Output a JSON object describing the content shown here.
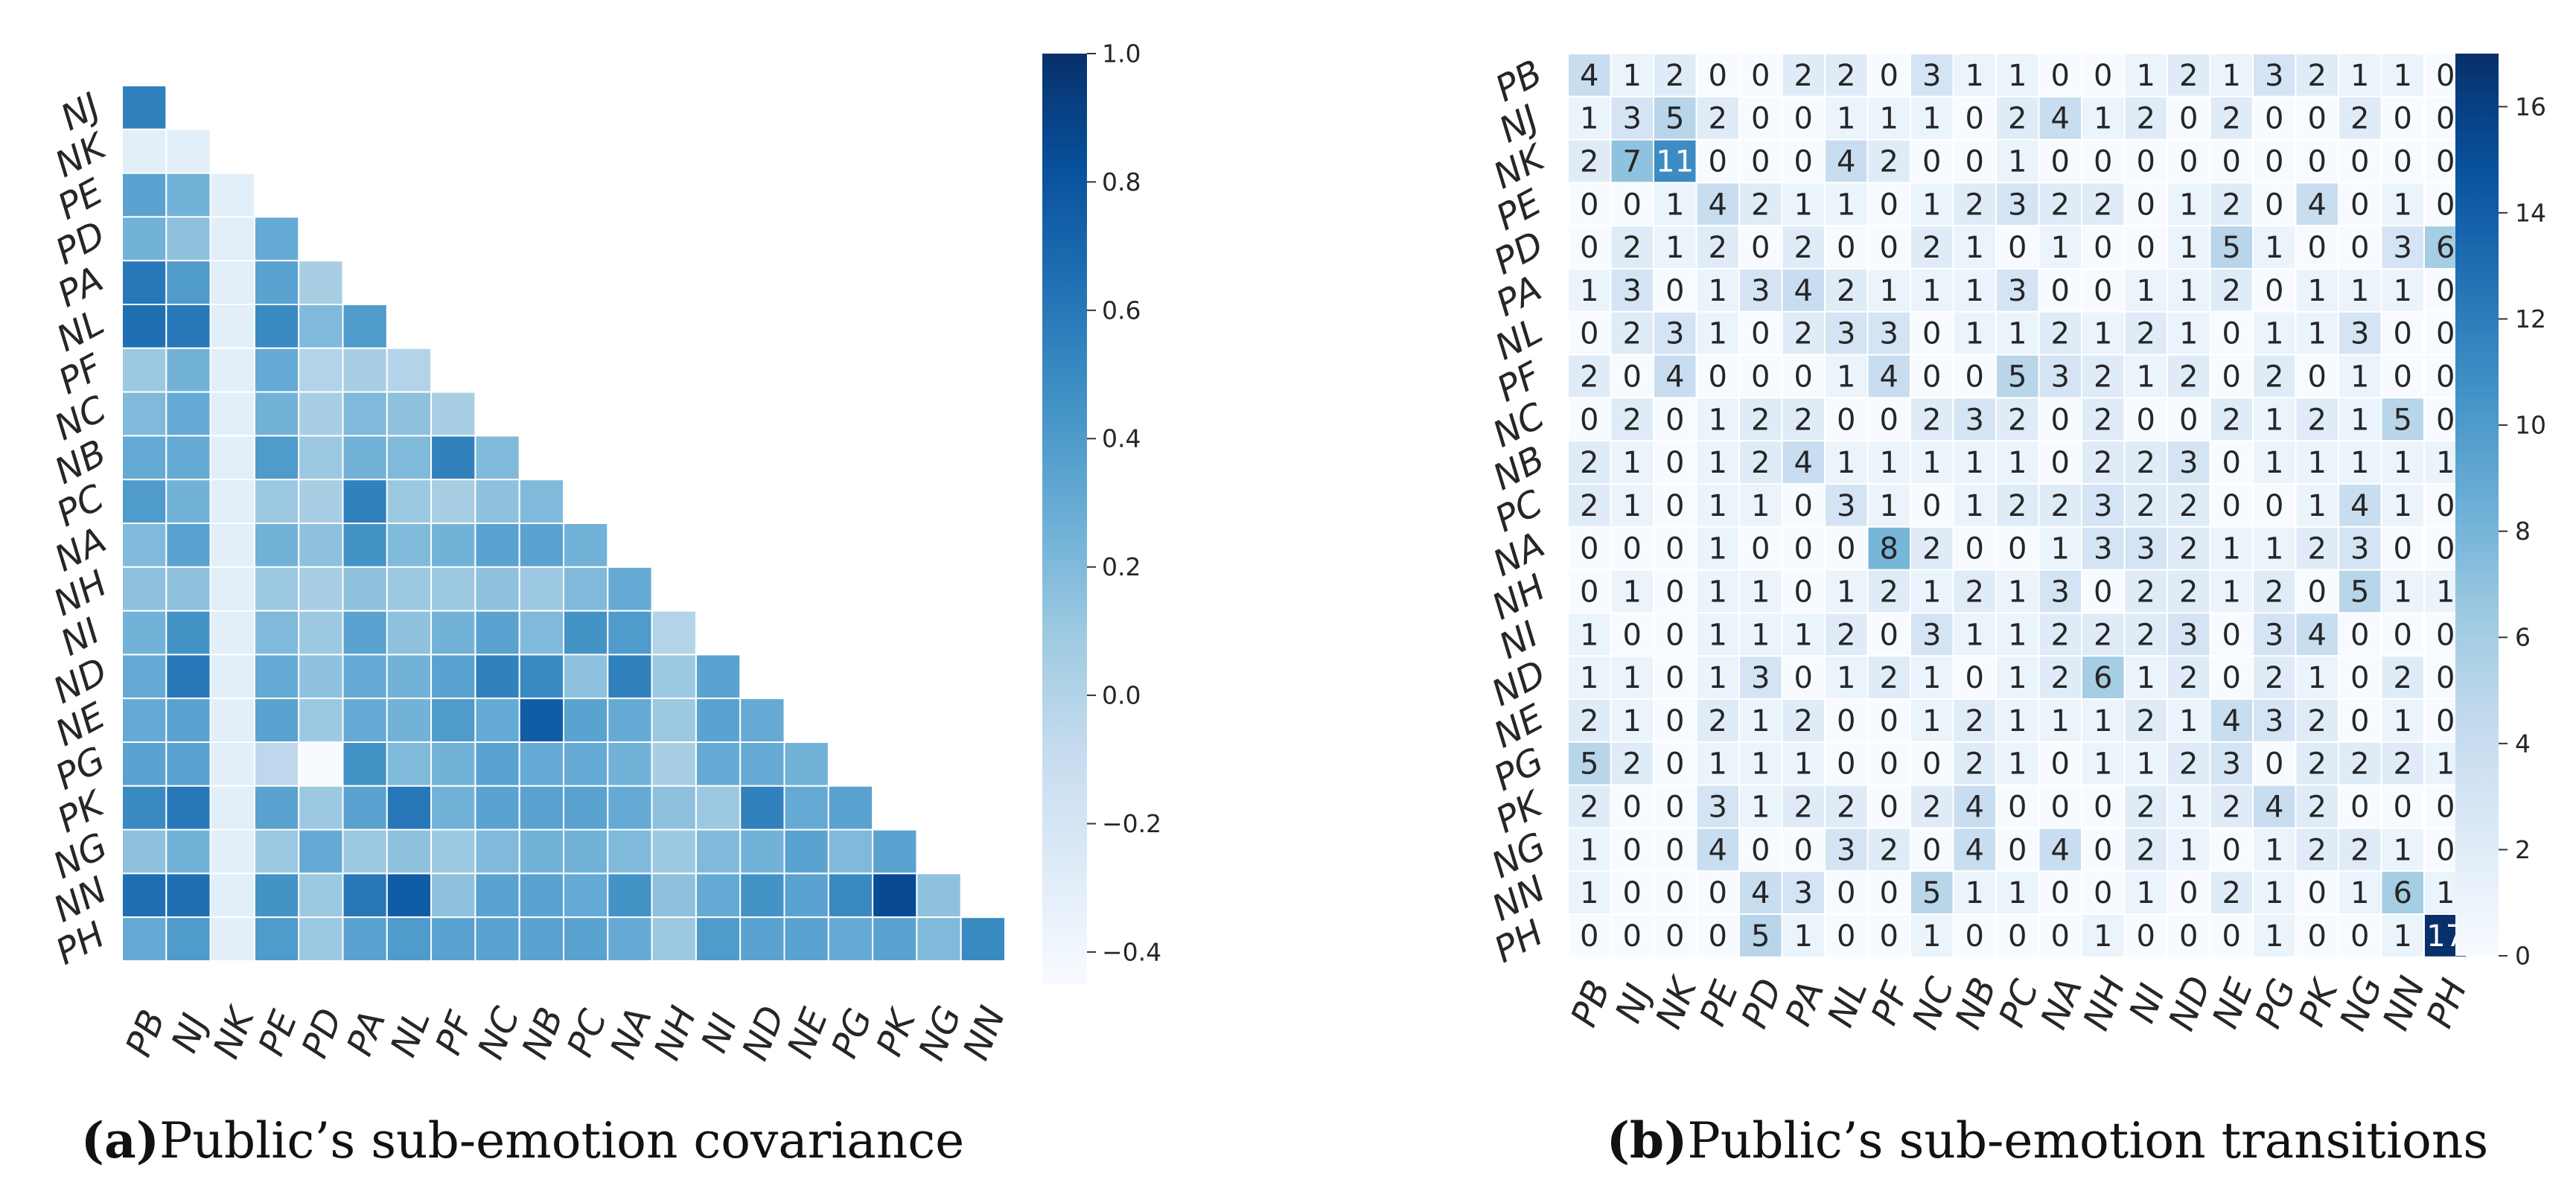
{
  "chart_data": [
    {
      "type": "heatmap",
      "subtype": "lower-triangle",
      "panel": "a",
      "caption_letter": "(a)",
      "caption_text": "Public’s sub-emotion covariance",
      "row_labels": [
        "NJ",
        "NK",
        "PE",
        "PD",
        "PA",
        "NL",
        "PF",
        "NC",
        "NB",
        "PC",
        "NA",
        "NH",
        "NI",
        "ND",
        "NE",
        "PG",
        "PK",
        "NG",
        "NN",
        "PH"
      ],
      "col_labels": [
        "PB",
        "NJ",
        "NK",
        "PE",
        "PD",
        "PA",
        "NL",
        "PF",
        "NC",
        "NB",
        "PC",
        "NA",
        "NH",
        "NI",
        "ND",
        "NE",
        "PG",
        "PK",
        "NG",
        "NN"
      ],
      "values": [
        [
          0.55
        ],
        [
          -0.3,
          -0.3
        ],
        [
          0.35,
          0.25,
          -0.3
        ],
        [
          0.25,
          0.15,
          -0.3,
          0.3
        ],
        [
          0.6,
          0.4,
          -0.3,
          0.35,
          0.05
        ],
        [
          0.65,
          0.6,
          -0.3,
          0.5,
          0.2,
          0.4
        ],
        [
          0.1,
          0.25,
          -0.3,
          0.3,
          0.0,
          0.05,
          0.0
        ],
        [
          0.2,
          0.3,
          -0.3,
          0.25,
          0.05,
          0.2,
          0.15,
          0.05
        ],
        [
          0.3,
          0.3,
          -0.3,
          0.4,
          0.1,
          0.25,
          0.2,
          0.55,
          0.2
        ],
        [
          0.4,
          0.25,
          -0.3,
          0.1,
          0.05,
          0.55,
          0.1,
          0.05,
          0.15,
          0.2
        ],
        [
          0.2,
          0.35,
          -0.3,
          0.25,
          0.15,
          0.45,
          0.2,
          0.25,
          0.35,
          0.35,
          0.25
        ],
        [
          0.15,
          0.15,
          -0.3,
          0.1,
          0.05,
          0.15,
          0.1,
          0.1,
          0.15,
          0.1,
          0.2,
          0.3
        ],
        [
          0.25,
          0.45,
          -0.3,
          0.2,
          0.1,
          0.35,
          0.15,
          0.25,
          0.35,
          0.2,
          0.45,
          0.4,
          0.0
        ],
        [
          0.3,
          0.6,
          -0.3,
          0.3,
          0.15,
          0.3,
          0.25,
          0.35,
          0.55,
          0.5,
          0.15,
          0.55,
          0.1,
          0.35
        ],
        [
          0.3,
          0.35,
          -0.3,
          0.35,
          0.1,
          0.3,
          0.25,
          0.4,
          0.3,
          0.75,
          0.35,
          0.3,
          0.1,
          0.35,
          0.3
        ],
        [
          0.35,
          0.35,
          -0.3,
          -0.05,
          -0.45,
          0.45,
          0.2,
          0.25,
          0.35,
          0.3,
          0.3,
          0.25,
          0.05,
          0.3,
          0.3,
          0.25
        ],
        [
          0.5,
          0.6,
          -0.3,
          0.35,
          0.1,
          0.35,
          0.6,
          0.25,
          0.35,
          0.35,
          0.35,
          0.3,
          0.15,
          0.1,
          0.55,
          0.3,
          0.35
        ],
        [
          0.15,
          0.25,
          -0.3,
          0.1,
          0.3,
          0.1,
          0.15,
          0.1,
          0.2,
          0.25,
          0.25,
          0.2,
          0.1,
          0.2,
          0.25,
          0.35,
          0.2,
          0.35
        ],
        [
          0.65,
          0.65,
          -0.3,
          0.45,
          0.1,
          0.6,
          0.75,
          0.15,
          0.35,
          0.35,
          0.3,
          0.45,
          0.15,
          0.3,
          0.45,
          0.35,
          0.5,
          0.85,
          0.15
        ],
        [
          0.3,
          0.4,
          -0.3,
          0.4,
          0.1,
          0.35,
          0.4,
          0.35,
          0.35,
          0.35,
          0.35,
          0.3,
          0.1,
          0.4,
          0.35,
          0.35,
          0.3,
          0.35,
          0.2,
          0.5
        ]
      ],
      "vmin": -0.45,
      "vmax": 1.0,
      "colorbar_ticks": [
        "1.0",
        "0.8",
        "0.6",
        "0.4",
        "0.2",
        "0.0",
        "−0.2",
        "−0.4"
      ],
      "colorbar_tick_values": [
        1.0,
        0.8,
        0.6,
        0.4,
        0.2,
        0.0,
        -0.2,
        -0.4
      ],
      "colormap": "Blues"
    },
    {
      "type": "heatmap",
      "panel": "b",
      "caption_letter": "(b)",
      "caption_text": "Public’s sub-emotion transitions",
      "row_labels": [
        "PB",
        "NJ",
        "NK",
        "PE",
        "PD",
        "PA",
        "NL",
        "PF",
        "NC",
        "NB",
        "PC",
        "NA",
        "NH",
        "NI",
        "ND",
        "NE",
        "PG",
        "PK",
        "NG",
        "NN",
        "PH"
      ],
      "col_labels": [
        "PB",
        "NJ",
        "NK",
        "PE",
        "PD",
        "PA",
        "NL",
        "PF",
        "NC",
        "NB",
        "PC",
        "NA",
        "NH",
        "NI",
        "ND",
        "NE",
        "PG",
        "PK",
        "NG",
        "NN",
        "PH"
      ],
      "values": [
        [
          4,
          1,
          2,
          0,
          0,
          2,
          2,
          0,
          3,
          1,
          1,
          0,
          0,
          1,
          2,
          1,
          3,
          2,
          1,
          1,
          0
        ],
        [
          1,
          3,
          5,
          2,
          0,
          0,
          1,
          1,
          1,
          0,
          2,
          4,
          1,
          2,
          0,
          2,
          0,
          0,
          2,
          0,
          0
        ],
        [
          2,
          7,
          11,
          0,
          0,
          0,
          4,
          2,
          0,
          0,
          1,
          0,
          0,
          0,
          0,
          0,
          0,
          0,
          0,
          0,
          0
        ],
        [
          0,
          0,
          1,
          4,
          2,
          1,
          1,
          0,
          1,
          2,
          3,
          2,
          2,
          0,
          1,
          2,
          0,
          4,
          0,
          1,
          0
        ],
        [
          0,
          2,
          1,
          2,
          0,
          2,
          0,
          0,
          2,
          1,
          0,
          1,
          0,
          0,
          1,
          5,
          1,
          0,
          0,
          3,
          6
        ],
        [
          1,
          3,
          0,
          1,
          3,
          4,
          2,
          1,
          1,
          1,
          3,
          0,
          0,
          1,
          1,
          2,
          0,
          1,
          1,
          1,
          0
        ],
        [
          0,
          2,
          3,
          1,
          0,
          2,
          3,
          3,
          0,
          1,
          1,
          2,
          1,
          2,
          1,
          0,
          1,
          1,
          3,
          0,
          0
        ],
        [
          2,
          0,
          4,
          0,
          0,
          0,
          1,
          4,
          0,
          0,
          5,
          3,
          2,
          1,
          2,
          0,
          2,
          0,
          1,
          0,
          0
        ],
        [
          0,
          2,
          0,
          1,
          2,
          2,
          0,
          0,
          2,
          3,
          2,
          0,
          2,
          0,
          0,
          2,
          1,
          2,
          1,
          5,
          0
        ],
        [
          2,
          1,
          0,
          1,
          2,
          4,
          1,
          1,
          1,
          1,
          1,
          0,
          2,
          2,
          3,
          0,
          1,
          1,
          1,
          1,
          1
        ],
        [
          2,
          1,
          0,
          1,
          1,
          0,
          3,
          1,
          0,
          1,
          2,
          2,
          3,
          2,
          2,
          0,
          0,
          1,
          4,
          1,
          0
        ],
        [
          0,
          0,
          0,
          1,
          0,
          0,
          0,
          8,
          2,
          0,
          0,
          1,
          3,
          3,
          2,
          1,
          1,
          2,
          3,
          0,
          0
        ],
        [
          0,
          1,
          0,
          1,
          1,
          0,
          1,
          2,
          1,
          2,
          1,
          3,
          0,
          2,
          2,
          1,
          2,
          0,
          5,
          1,
          1
        ],
        [
          1,
          0,
          0,
          1,
          1,
          1,
          2,
          0,
          3,
          1,
          1,
          2,
          2,
          2,
          3,
          0,
          3,
          4,
          0,
          0,
          0
        ],
        [
          1,
          1,
          0,
          1,
          3,
          0,
          1,
          2,
          1,
          0,
          1,
          2,
          6,
          1,
          2,
          0,
          2,
          1,
          0,
          2,
          0
        ],
        [
          2,
          1,
          0,
          2,
          1,
          2,
          0,
          0,
          1,
          2,
          1,
          1,
          1,
          2,
          1,
          4,
          3,
          2,
          0,
          1,
          0
        ],
        [
          5,
          2,
          0,
          1,
          1,
          1,
          0,
          0,
          0,
          2,
          1,
          0,
          1,
          1,
          2,
          3,
          0,
          2,
          2,
          2,
          1
        ],
        [
          2,
          0,
          0,
          3,
          1,
          2,
          2,
          0,
          2,
          4,
          0,
          0,
          0,
          2,
          1,
          2,
          4,
          2,
          0,
          0,
          0
        ],
        [
          1,
          0,
          0,
          4,
          0,
          0,
          3,
          2,
          0,
          4,
          0,
          4,
          0,
          2,
          1,
          0,
          1,
          2,
          2,
          1,
          0
        ],
        [
          1,
          0,
          0,
          0,
          4,
          3,
          0,
          0,
          5,
          1,
          1,
          0,
          0,
          1,
          0,
          2,
          1,
          0,
          1,
          6,
          1
        ],
        [
          0,
          0,
          0,
          0,
          5,
          1,
          0,
          0,
          1,
          0,
          0,
          0,
          1,
          0,
          0,
          0,
          1,
          0,
          0,
          1,
          17
        ]
      ],
      "vmin": 0,
      "vmax": 17,
      "colorbar_ticks": [
        "16",
        "14",
        "12",
        "10",
        "8",
        "6",
        "4",
        "2",
        "0"
      ],
      "colorbar_tick_values": [
        16,
        14,
        12,
        10,
        8,
        6,
        4,
        2,
        0
      ],
      "colormap": "Blues"
    }
  ]
}
